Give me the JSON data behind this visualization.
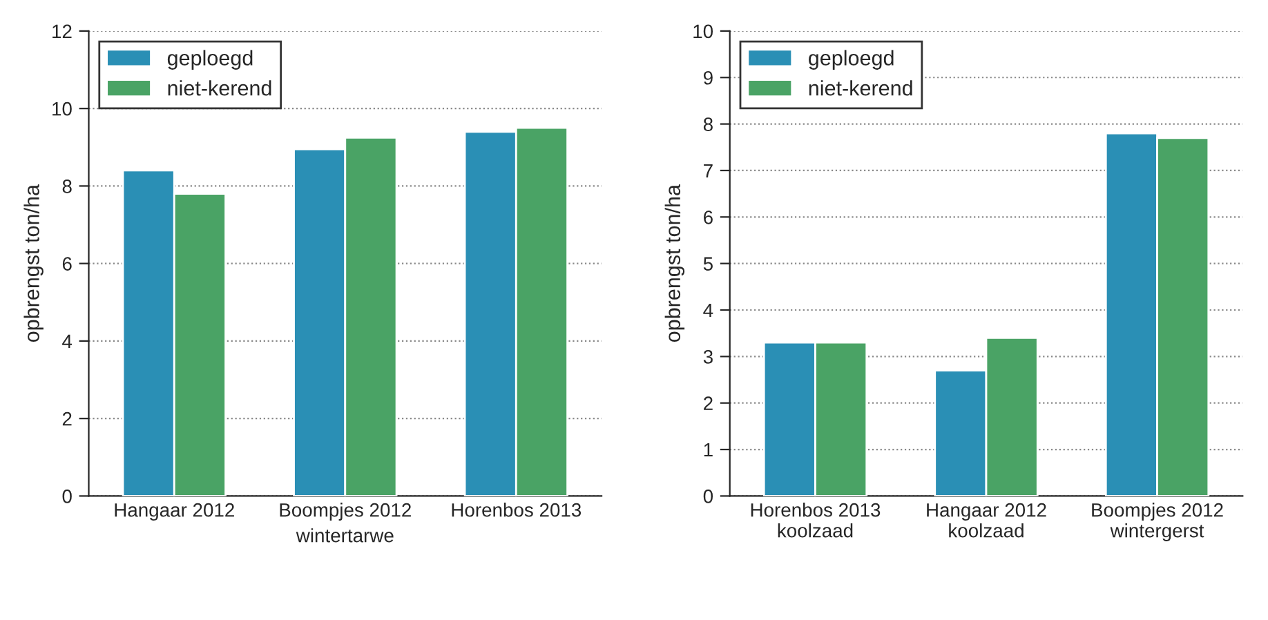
{
  "chart_data": [
    {
      "type": "bar",
      "xlabel": "wintertarwe",
      "ylabel": "opbrengst ton/ha",
      "categories": [
        "Hangaar 2012",
        "Boompjes 2012",
        "Horenbos 2013"
      ],
      "series": [
        {
          "name": "geploegd",
          "color": "#2a8fb5",
          "values": [
            8.4,
            8.95,
            9.4
          ]
        },
        {
          "name": "niet-kerend",
          "color": "#4aa365",
          "values": [
            7.8,
            9.25,
            9.5
          ]
        }
      ],
      "ylim": [
        0,
        12
      ],
      "yticks": [
        0,
        2,
        4,
        6,
        8,
        10,
        12
      ],
      "grid": "y",
      "legend": "top left"
    },
    {
      "type": "bar",
      "ylabel": "opbrengst ton/ha",
      "categories": [
        "Horenbos 2013\nkoolzaad",
        "Hangaar 2012\nkoolzaad",
        "Boompjes 2012\nwintergerst"
      ],
      "series": [
        {
          "name": "geploegd",
          "color": "#2a8fb5",
          "values": [
            3.3,
            2.7,
            7.8
          ]
        },
        {
          "name": "niet-kerend",
          "color": "#4aa365",
          "values": [
            3.3,
            3.4,
            7.7
          ]
        }
      ],
      "ylim": [
        0,
        10
      ],
      "yticks": [
        0,
        1,
        2,
        3,
        4,
        5,
        6,
        7,
        8,
        9,
        10
      ],
      "grid": "y",
      "legend": "top left"
    }
  ]
}
